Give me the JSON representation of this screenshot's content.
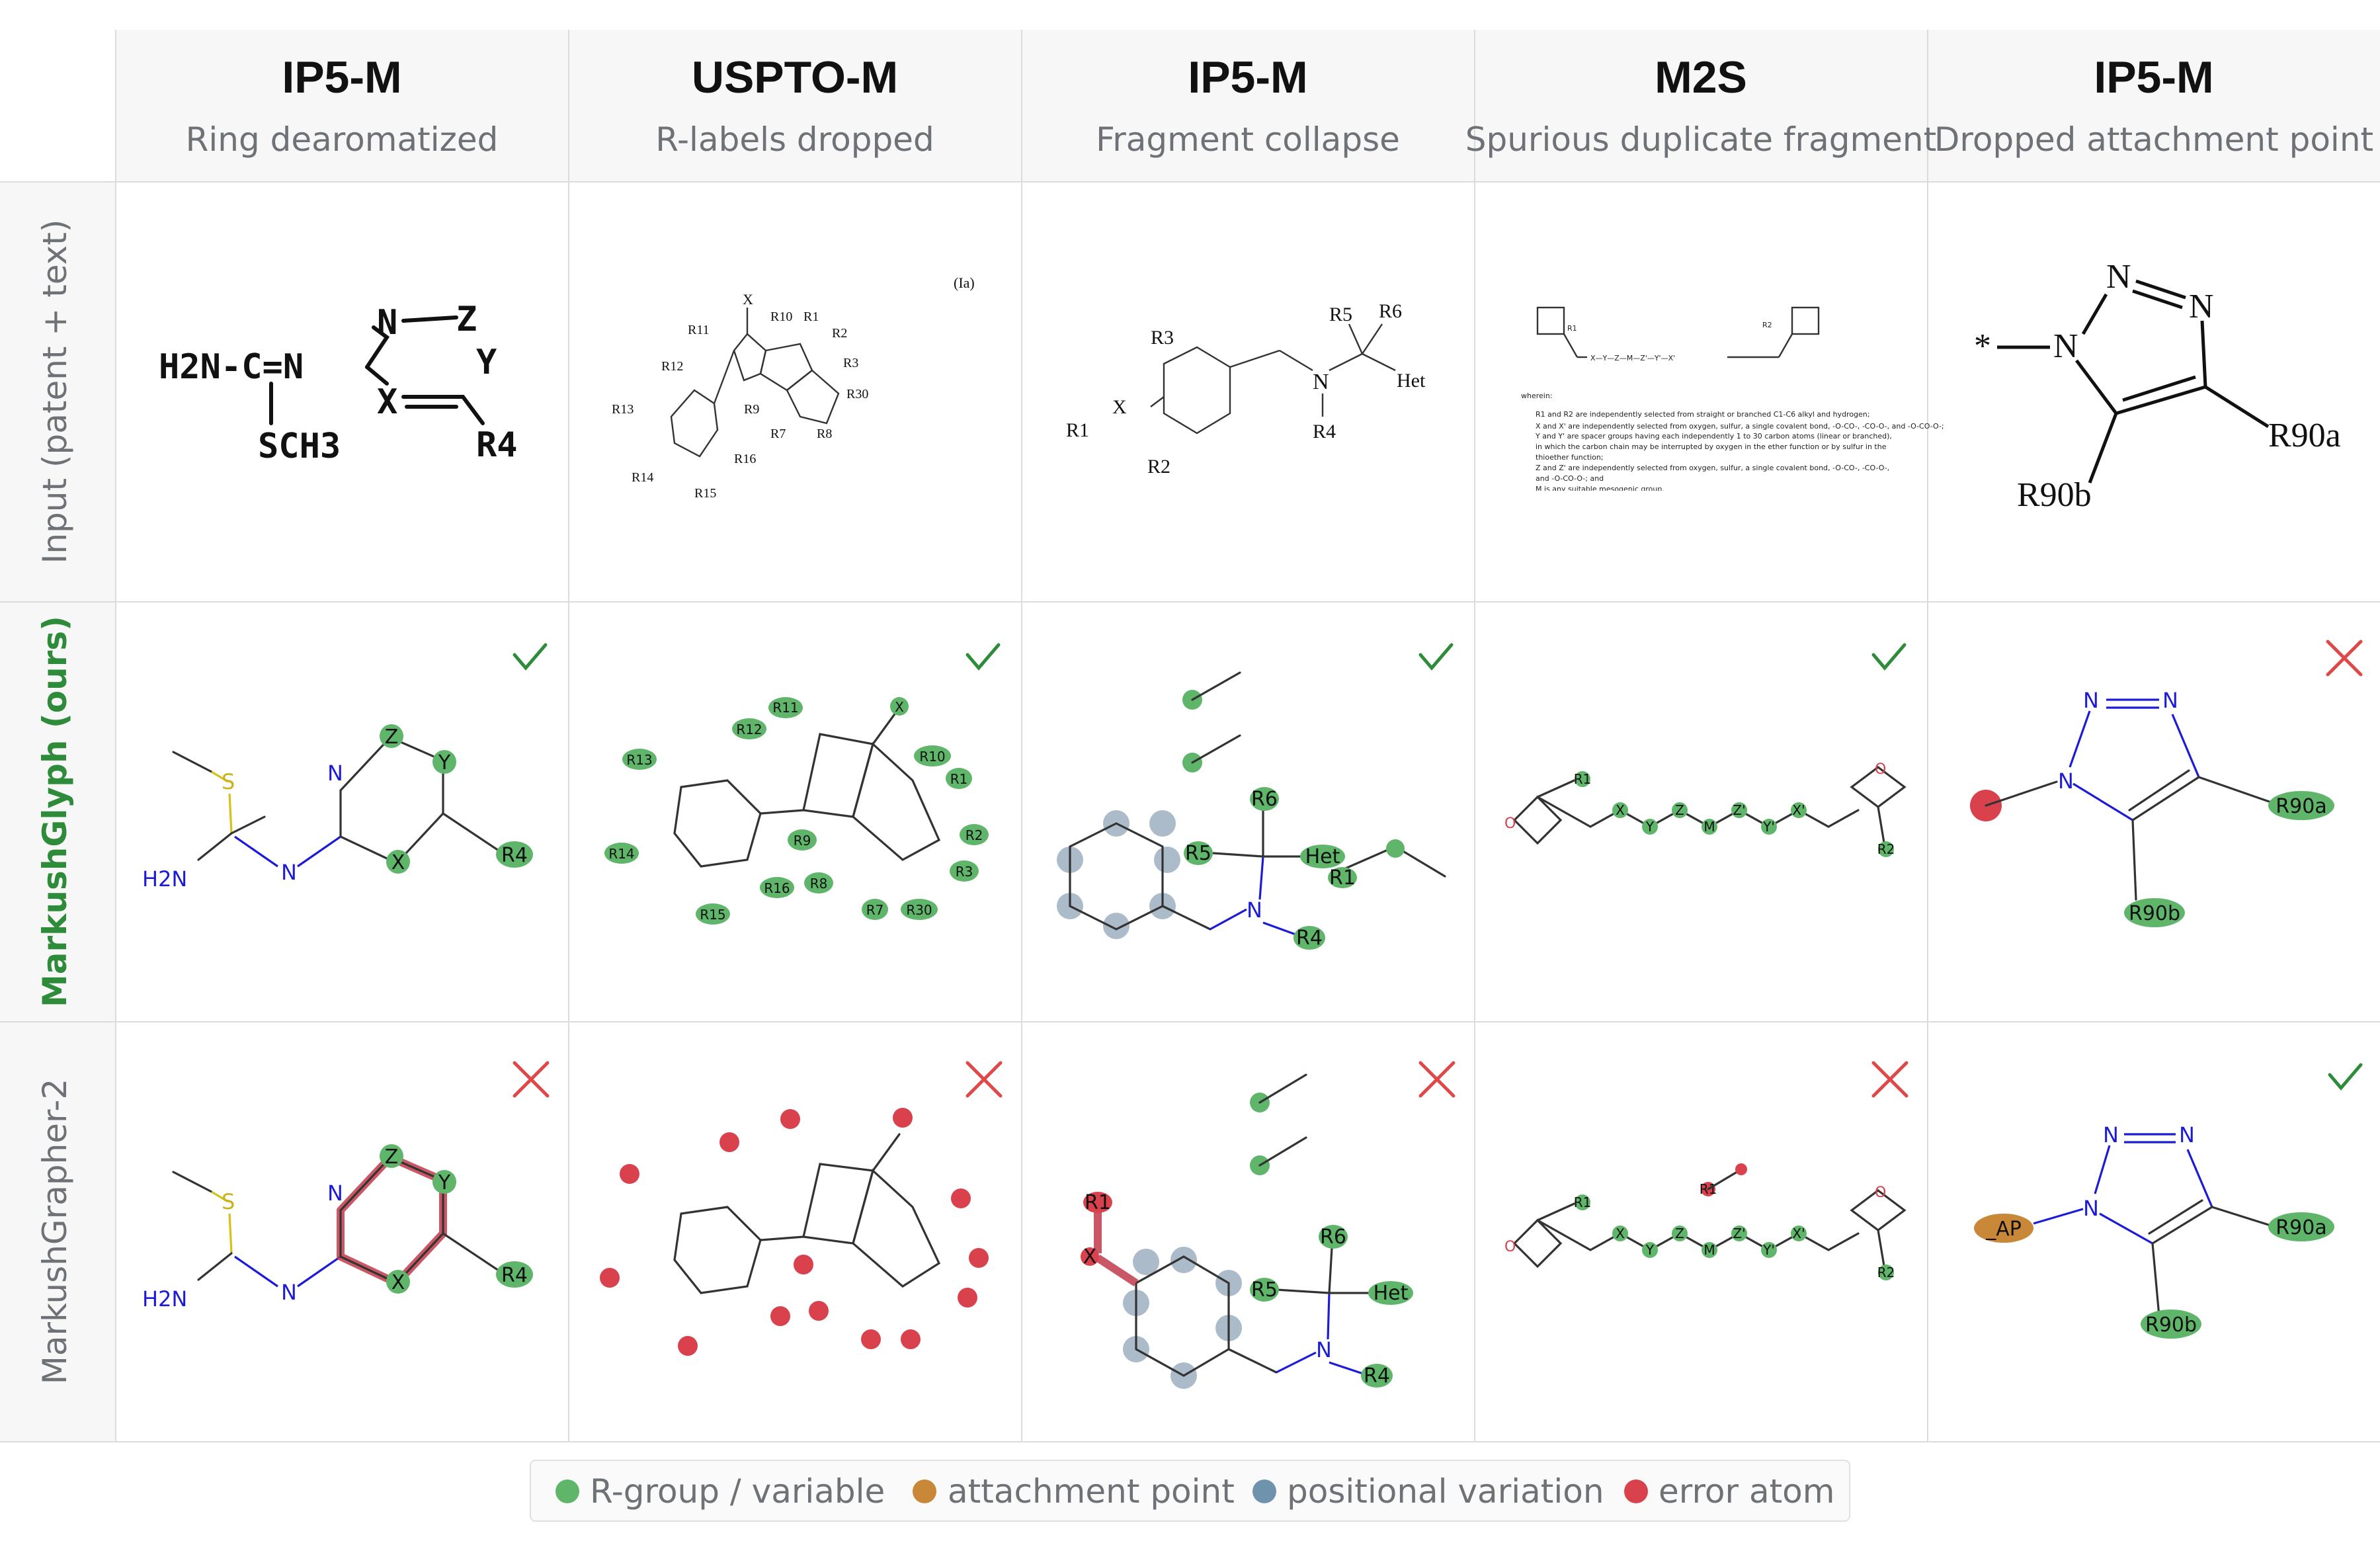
{
  "columns": [
    {
      "dataset": "IP5-M",
      "failure": "Ring dearomatized"
    },
    {
      "dataset": "USPTO-M",
      "failure": "R-labels dropped"
    },
    {
      "dataset": "IP5-M",
      "failure": "Fragment collapse"
    },
    {
      "dataset": "M2S",
      "failure": "Spurious duplicate fragment"
    },
    {
      "dataset": "IP5-M",
      "failure": "Dropped attachment point"
    }
  ],
  "rows": [
    {
      "label": "Input (patent + text)"
    },
    {
      "label": "MarkushGlyph (ours)"
    },
    {
      "label": "MarkushGrapher-2"
    }
  ],
  "verdicts": {
    "markushglyph": [
      "correct",
      "correct",
      "correct",
      "correct",
      "wrong"
    ],
    "markushgrapher2": [
      "wrong",
      "wrong",
      "wrong",
      "wrong",
      "correct"
    ]
  },
  "legend": [
    {
      "label": "R-group / variable",
      "color": "#5fb56a"
    },
    {
      "label": "attachment point",
      "color": "#c98837"
    },
    {
      "label": "positional variation",
      "color": "#6f93ad"
    },
    {
      "label": "error atom",
      "color": "#d9414d"
    }
  ],
  "molecules": {
    "c1_input": {
      "h2n": "H2N-C=N",
      "sch3": "SCH3",
      "n": "N",
      "z": "Z",
      "y": "Y",
      "x": "X",
      "r4": "R4"
    },
    "c1_ours": {
      "s": "S",
      "n1": "N",
      "n2": "N",
      "h2n": "H2N",
      "z": "Z",
      "y": "Y",
      "x": "X",
      "r4": "R4"
    },
    "c1_mg2": {
      "s": "S",
      "n1": "N",
      "n2": "N",
      "h2n": "H2N",
      "z": "Z",
      "y": "Y",
      "x": "X",
      "r4": "R4"
    },
    "c2_input": {
      "x": "X",
      "r10": "R10",
      "r1": "R1",
      "r2": "R2",
      "r3": "R3",
      "r30": "R30",
      "r8": "R8",
      "r7": "R7",
      "r9": "R9",
      "r11": "R11",
      "r12": "R12",
      "r13": "R13",
      "r14": "R14",
      "r15": "R15",
      "r16": "R16",
      "la": "(Ia)"
    },
    "c2_ours": {
      "r11": "R11",
      "x": "X",
      "r10": "R10",
      "r1": "R1",
      "r2": "R2",
      "r3": "R3",
      "r30": "R30",
      "r7": "R7",
      "r8": "R8",
      "r9": "R9",
      "r12": "R12",
      "r13": "R13",
      "r14": "R14",
      "r15": "R15",
      "r16": "R16"
    },
    "c2_mg2": {
      "star": "*"
    },
    "c3_input": {
      "r3": "R3",
      "r1": "R1",
      "x": "X",
      "r2": "R2",
      "n": "N",
      "r5": "R5",
      "r6": "R6",
      "het": "Het",
      "r4": "R4"
    },
    "c3_ours": {
      "r6": "R6",
      "r5": "R5",
      "het": "Het",
      "r1": "R1",
      "n": "N",
      "r4": "R4"
    },
    "c3_mg2": {
      "r1": "R1",
      "x": "X",
      "r6": "R6",
      "r5": "R5",
      "het": "Het",
      "n": "N",
      "r4": "R4"
    },
    "c4_input": {
      "r1": "R1",
      "r2": "R2",
      "chain": "X—Y—Z—M—Z'—Y'—X'",
      "wherein": "wherein:",
      "def1": "R1 and R2 are independently selected from straight or branched C1-C6 alkyl and hydrogen;",
      "def2": "X and X' are independently selected from oxygen, sulfur, a single covalent bond, -O-CO-, -CO-O-, and -O-CO-O-;",
      "def3": "Y and Y' are spacer groups having each independently 1 to 30 carbon atoms (linear or branched), in which the carbon chain may be interrupted by oxygen in the ether function or by sulfur in the thioether function;",
      "def4": "Z and Z' are independently selected from oxygen, sulfur, a single covalent bond, -O-CO-, -CO-O-, and -O-CO-O-; and",
      "def5": "M is any suitable mesogenic group."
    },
    "c4_ours": {
      "o": "O",
      "r1": "R1",
      "x": "X",
      "y": "Y",
      "z": "Z",
      "m": "M",
      "z2": "Z'",
      "y2": "Y'",
      "x2": "X'",
      "o2": "O",
      "r2": "R2"
    },
    "c4_mg2": {
      "o": "O",
      "r1": "R1",
      "dup": "R1",
      "x": "X",
      "y": "Y",
      "z": "Z",
      "m": "M",
      "z2": "Z'",
      "y2": "Y'",
      "x2": "X'",
      "o2": "O",
      "r2": "R2"
    },
    "c5_input": {
      "star": "*",
      "n1": "N",
      "n2": "N",
      "n3": "N",
      "r90a": "R90a",
      "r90b": "R90b"
    },
    "c5_ours": {
      "n1": "N",
      "n2": "N",
      "n3": "N",
      "r90a": "R90a",
      "r90b": "R90b"
    },
    "c5_mg2": {
      "ap": "_AP",
      "n1": "N",
      "n2": "N",
      "n3": "N",
      "r90a": "R90a",
      "r90b": "R90b"
    }
  }
}
